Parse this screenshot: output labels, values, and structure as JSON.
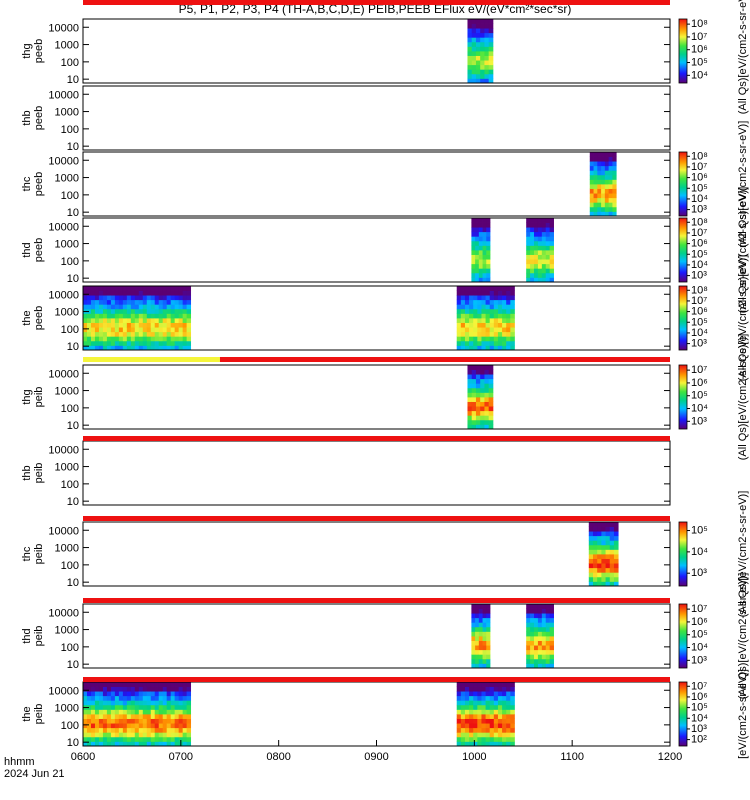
{
  "title": "P5, P1, P2, P3, P4 (TH-A,B,C,D,E) PEIB,PEEB EFlux eV/(eV*cm²*sec*sr)",
  "footer": {
    "line1": "hhmm",
    "line2": "2024 Jun 21"
  },
  "x_axis": {
    "ticks": [
      "0600",
      "0700",
      "0800",
      "0900",
      "1000",
      "1100",
      "1200"
    ]
  },
  "y_ticks": [
    "10",
    "100",
    "1000",
    "10000"
  ],
  "state_bars": [
    {
      "segments": [
        {
          "start": 6.0,
          "end": 7.4,
          "color": "#f5f53a"
        },
        {
          "start": 7.4,
          "end": 12.0,
          "color": "#ee1111"
        }
      ]
    },
    {
      "segments": [
        {
          "start": 6.0,
          "end": 12.0,
          "color": "#ee1111"
        }
      ]
    },
    {
      "segments": [
        {
          "start": 6.0,
          "end": 12.0,
          "color": "#ee1111"
        }
      ]
    },
    {
      "segments": [
        {
          "start": 6.0,
          "end": 12.0,
          "color": "#ee1111"
        }
      ]
    },
    {
      "segments": [
        {
          "start": 6.0,
          "end": 12.0,
          "color": "#ee1111"
        }
      ]
    },
    {
      "segments": [
        {
          "start": 6.0,
          "end": 12.0,
          "color": "#ee1111"
        }
      ]
    }
  ],
  "chart_data": {
    "type": "heatmap",
    "x_unit": "hour (UT)",
    "xlim": [
      6.0,
      12.0
    ],
    "ylim": [
      6,
      30000
    ],
    "y_scale": "log",
    "panels": [
      {
        "label": [
          "thg",
          "peeb"
        ],
        "intervals": [
          {
            "start": 9.93,
            "end": 10.19,
            "level": 0.55
          }
        ],
        "colorbar": {
          "labels": [
            "10⁴",
            "10⁵",
            "10⁶",
            "10⁷",
            "10⁸"
          ],
          "title": "(All Qs)[eV/(cm2-s-sr-eV)]"
        }
      },
      {
        "label": [
          "thb",
          "peeb"
        ],
        "intervals": [],
        "colorbar": null
      },
      {
        "label": [
          "thc",
          "peeb"
        ],
        "intervals": [
          {
            "start": 11.18,
            "end": 11.45,
            "level": 0.7
          }
        ],
        "colorbar": {
          "labels": [
            "10³",
            "10⁴",
            "10⁵",
            "10⁶",
            "10⁷",
            "10⁸"
          ],
          "title": "(All Qs)[eV/(cm2-s-sr-eV)]"
        }
      },
      {
        "label": [
          "thd",
          "peeb"
        ],
        "intervals": [
          {
            "start": 9.97,
            "end": 10.16,
            "level": 0.55
          },
          {
            "start": 10.53,
            "end": 10.81,
            "level": 0.6
          }
        ],
        "colorbar": {
          "labels": [
            "10³",
            "10⁴",
            "10⁵",
            "10⁶",
            "10⁷",
            "10⁸"
          ],
          "title": "(All Qs)[eV/(cm2-s-sr-eV)]"
        }
      },
      {
        "label": [
          "the",
          "peeb"
        ],
        "intervals": [
          {
            "start": 6.0,
            "end": 7.1,
            "level": 0.65
          },
          {
            "start": 9.82,
            "end": 10.41,
            "level": 0.65
          }
        ],
        "colorbar": {
          "labels": [
            "10³",
            "10⁴",
            "10⁵",
            "10⁶",
            "10⁷",
            "10⁸"
          ],
          "title": "(All Qs)[eV/(cm2-s-sr-eV)]"
        }
      },
      {
        "label": [
          "thg",
          "peib"
        ],
        "intervals": [
          {
            "start": 9.93,
            "end": 10.19,
            "level": 0.75
          }
        ],
        "colorbar": {
          "labels": [
            "10³",
            "10⁴",
            "10⁵",
            "10⁶",
            "10⁷"
          ],
          "title": "(All Qs)[eV/(cm2-s-sr-eV)]"
        }
      },
      {
        "label": [
          "thb",
          "peib"
        ],
        "intervals": [],
        "colorbar": null
      },
      {
        "label": [
          "thc",
          "peib"
        ],
        "intervals": [
          {
            "start": 11.17,
            "end": 11.47,
            "level": 0.8
          }
        ],
        "colorbar": {
          "labels": [
            "10³",
            "10⁴",
            "10⁵"
          ],
          "title": "(All Qs)[eV/(cm2-s-sr-eV)]"
        }
      },
      {
        "label": [
          "thd",
          "peib"
        ],
        "intervals": [
          {
            "start": 9.97,
            "end": 10.16,
            "level": 0.7
          },
          {
            "start": 10.53,
            "end": 10.81,
            "level": 0.7
          }
        ],
        "colorbar": {
          "labels": [
            "10³",
            "10⁴",
            "10⁵",
            "10⁶",
            "10⁷"
          ],
          "title": "(All Qs)[eV/(cm2-s-sr-eV)]"
        }
      },
      {
        "label": [
          "the",
          "peib"
        ],
        "intervals": [
          {
            "start": 6.0,
            "end": 7.1,
            "level": 0.75
          },
          {
            "start": 9.82,
            "end": 10.41,
            "level": 0.8
          }
        ],
        "colorbar": {
          "labels": [
            "10²",
            "10³",
            "10⁴",
            "10⁵",
            "10⁶",
            "10⁷"
          ],
          "title": "[eV/(cm2-s-sr-eV)]"
        }
      }
    ]
  }
}
